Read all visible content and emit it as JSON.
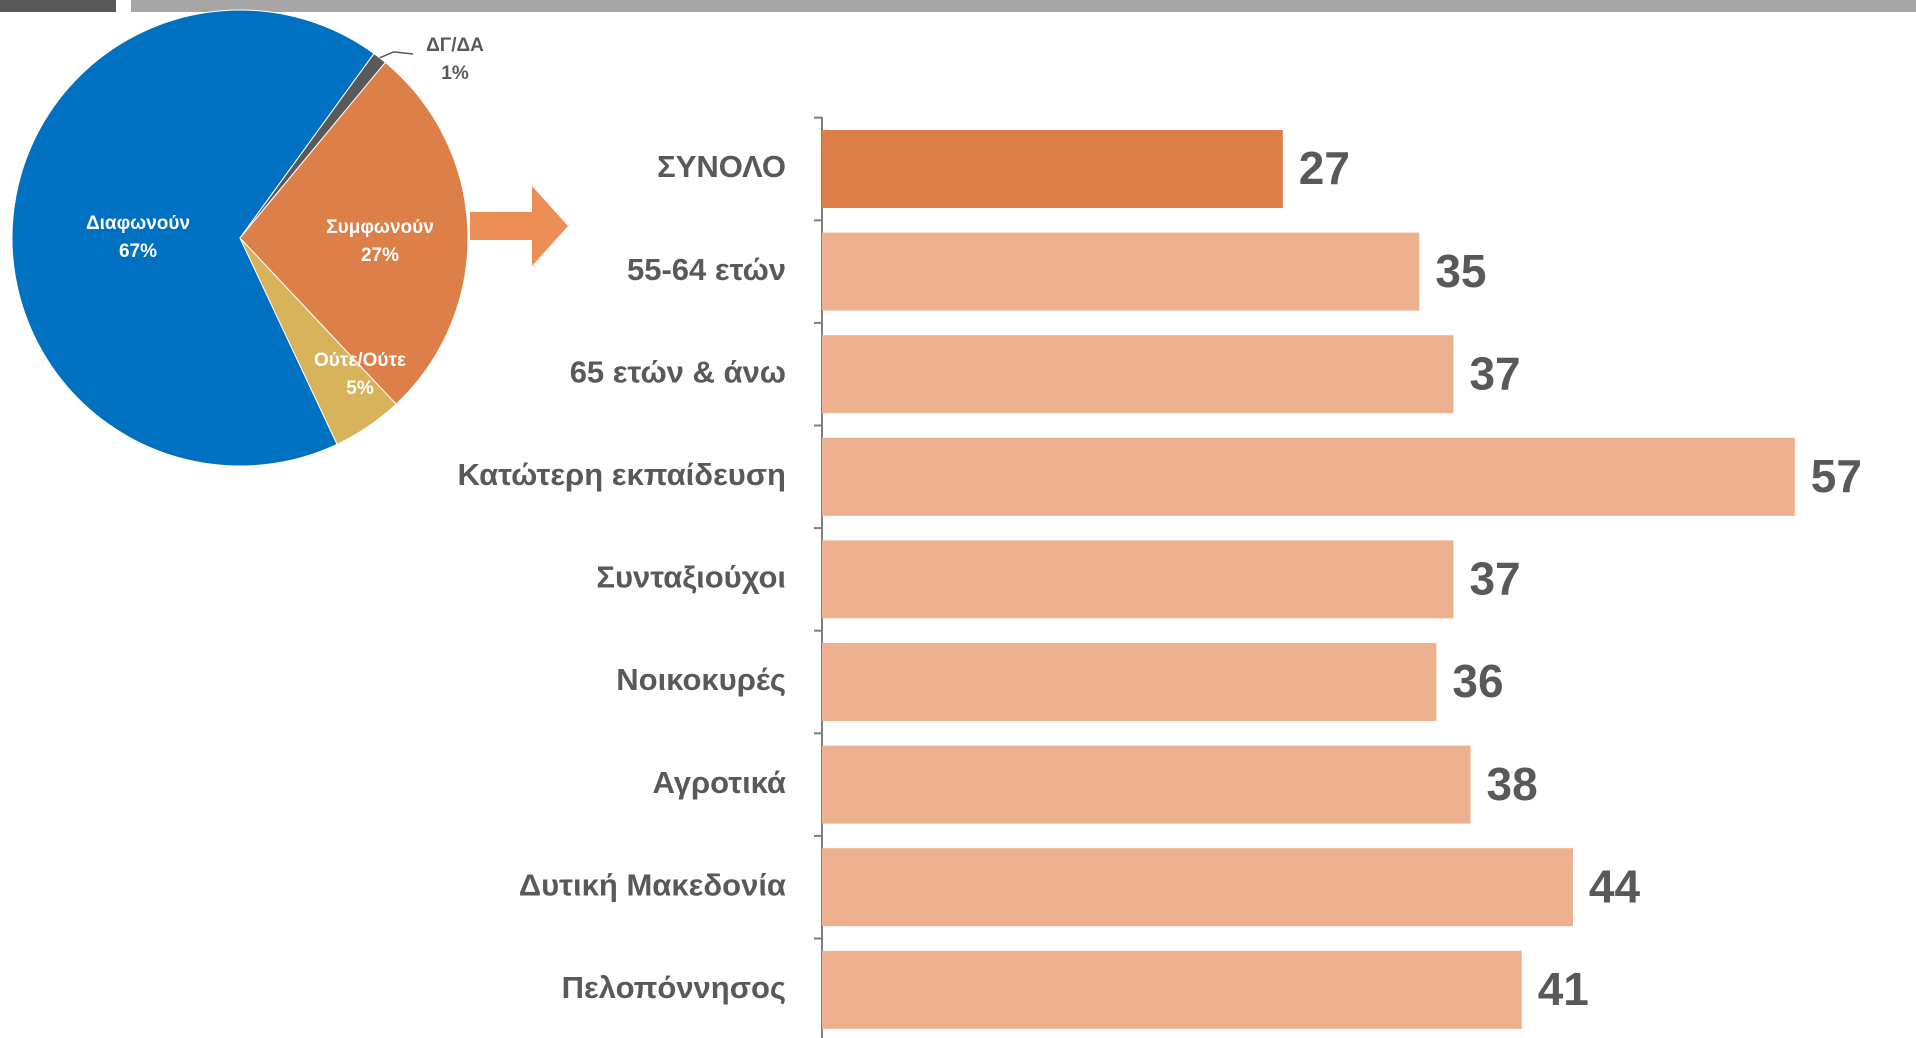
{
  "chart_data": [
    {
      "type": "pie",
      "categories": [
        "Διαφωνούν",
        "ΔΓ/ΔΑ",
        "Συμφωνούν",
        "Ούτε/Ούτε"
      ],
      "values": [
        67,
        1,
        27,
        5
      ],
      "value_labels": [
        "67%",
        "1%",
        "27%",
        "5%"
      ],
      "colors": [
        "#0070c0",
        "#595959",
        "#dc7f48",
        "#d8b35c"
      ]
    },
    {
      "type": "bar",
      "orientation": "horizontal",
      "categories": [
        "ΣΥΝΟΛΟ",
        "55-64 ετών",
        "65 ετών & άνω",
        "Κατώτερη εκπαίδευση",
        "Συνταξιούχοι",
        "Νοικοκυρές",
        "Αγροτικά",
        "Δυτική Μακεδονία",
        "Πελοπόννησος"
      ],
      "values": [
        27,
        35,
        37,
        57,
        37,
        36,
        38,
        44,
        41
      ],
      "colors": [
        "#dc7f48",
        "#edb190",
        "#edb190",
        "#edb190",
        "#edb190",
        "#edb190",
        "#edb190",
        "#edb190",
        "#edb190"
      ],
      "xlim": [
        0,
        60
      ]
    }
  ]
}
